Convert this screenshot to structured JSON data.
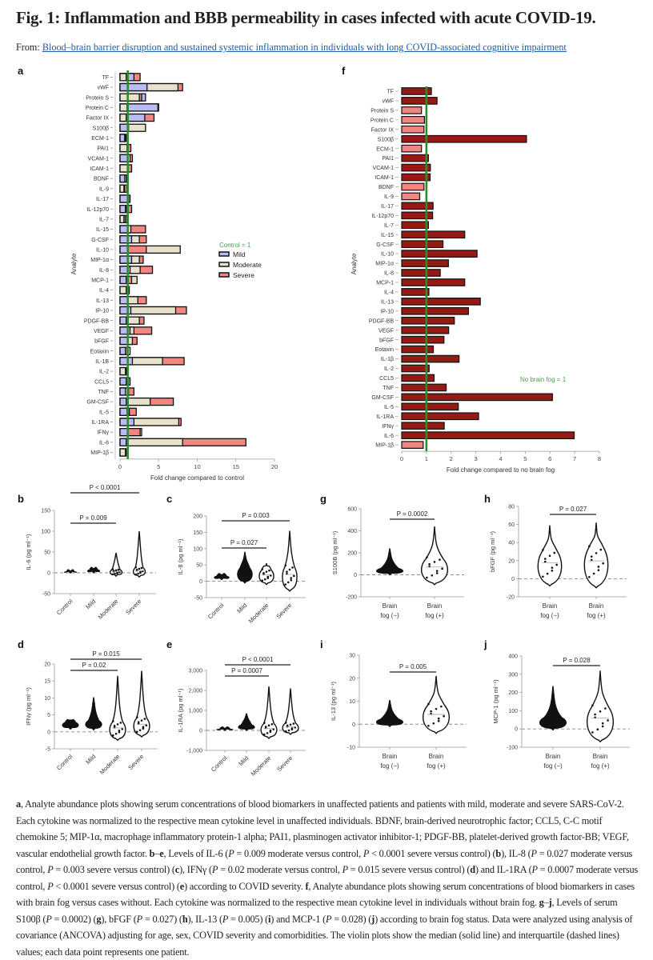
{
  "header": {
    "title": "Fig. 1: Inflammation and BBB permeability in cases infected with acute COVID-19.",
    "from_label": "From:",
    "from_link": "Blood–brain barrier disruption and sustained systemic inflammation in individuals with long COVID-associated cognitive impairment"
  },
  "colors": {
    "mild": "#b9bcf5",
    "moderate": "#e8e2cc",
    "severe": "#f08680",
    "fog_up": "#961a14",
    "fog_down": "#f08680",
    "reference_line": "#2e8b2e",
    "reference_text": "#4aa04a"
  },
  "chart_data": [
    {
      "panel": "a",
      "type": "bar",
      "orientation": "horizontal",
      "xlabel": "Fold change compared to control",
      "ylabel": "Analyte",
      "xlim": [
        0,
        20
      ],
      "xticks": [
        "0",
        "5",
        "10",
        "15",
        "20"
      ],
      "reference_line": 1,
      "reference_label": "Control = 1",
      "legend": [
        "Mild",
        "Moderate",
        "Severe"
      ],
      "legend_position": "right",
      "categories": [
        "TF",
        "vWF",
        "Protein S",
        "Protein C",
        "Factor IX",
        "S100β",
        "ECM-1",
        "PAI1",
        "VCAM-1",
        "ICAM-1",
        "BDNF",
        "IL-9",
        "IL-17",
        "IL-12p70",
        "IL-7",
        "IL-15",
        "G-CSF",
        "IL-10",
        "MIP-1α",
        "IL-8",
        "MCP-1",
        "IL-4",
        "IL-13",
        "IP-10",
        "PDGF-BB",
        "VEGF",
        "bFGF",
        "Eotaxin",
        "IL-1B",
        "IL-2",
        "CCL5",
        "TNF",
        "GM-CSF",
        "IL-5",
        "IL-1RA",
        "IFNγ",
        "IL-6",
        "MIP-1β"
      ],
      "series": [
        {
          "name": "Mild",
          "values": [
            1.8,
            3.5,
            3.3,
            4.9,
            3.2,
            1.0,
            0.6,
            1.0,
            1.0,
            1.0,
            0.6,
            0.6,
            1.0,
            0.7,
            0.9,
            1.0,
            1.5,
            1.0,
            1.5,
            1.3,
            0.8,
            1.0,
            1.0,
            1.4,
            0.8,
            1.3,
            1.0,
            0.7,
            1.6,
            0.9,
            0.8,
            0.7,
            0.8,
            0.9,
            1.8,
            1.0,
            0.8,
            0.7
          ]
        },
        {
          "name": "Moderate",
          "values": [
            0.8,
            7.5,
            2.5,
            0.9,
            0.8,
            3.3,
            0.7,
            0.9,
            1.3,
            1.0,
            0.8,
            0.5,
            1.1,
            0.8,
            0.5,
            1.4,
            2.5,
            7.8,
            2.5,
            2.6,
            2.2,
            0.8,
            2.3,
            7.2,
            2.5,
            1.8,
            1.6,
            1.3,
            5.5,
            0.7,
            1.3,
            1.1,
            3.9,
            1.2,
            7.6,
            2.8,
            8.1,
            0.7
          ]
        },
        {
          "name": "Severe",
          "values": [
            2.6,
            8.1,
            2.8,
            5.0,
            4.4,
            1.1,
            0.8,
            1.4,
            1.6,
            1.5,
            0.9,
            0.9,
            1.3,
            1.5,
            0.7,
            3.3,
            3.4,
            3.4,
            3.0,
            4.2,
            1.5,
            1.2,
            3.4,
            8.6,
            3.1,
            4.1,
            2.2,
            1.0,
            8.3,
            0.8,
            1.1,
            1.8,
            6.9,
            2.1,
            7.9,
            2.6,
            16.3,
            0.8
          ]
        }
      ]
    },
    {
      "panel": "f",
      "type": "bar",
      "orientation": "horizontal",
      "xlabel": "Fold change compared to no brain fog",
      "ylabel": "Analyte",
      "xlim": [
        0,
        8
      ],
      "xticks": [
        "0",
        "1",
        "2",
        "3",
        "4",
        "5",
        "6",
        "7",
        "8"
      ],
      "reference_line": 1,
      "reference_label": "No brain fog = 1",
      "categories": [
        "TF",
        "vWF",
        "Protein S",
        "Protein C",
        "Factor IX",
        "S100β",
        "ECM-1",
        "PAI1",
        "VCAM-1",
        "ICAM-1",
        "BDNF",
        "IL-9",
        "IL-17",
        "IL-12p70",
        "IL-7",
        "IL-15",
        "G-CSF",
        "IL-10",
        "MIP-1α",
        "IL-8",
        "MCP-1",
        "IL-4",
        "IL-13",
        "IP-10",
        "PDGF-BB",
        "VEGF",
        "bFGF",
        "Eotaxin",
        "IL-1β",
        "IL-2",
        "CCL5",
        "TNF",
        "GM-CSF",
        "IL-5",
        "IL-1RA",
        "IFNγ",
        "IL-6",
        "MIP-1β"
      ],
      "values": [
        1.2,
        1.43,
        0.8,
        0.92,
        0.9,
        5.05,
        0.8,
        1.08,
        1.16,
        1.15,
        0.9,
        0.73,
        1.27,
        1.25,
        1.08,
        2.55,
        1.67,
        3.05,
        1.89,
        1.56,
        2.55,
        1.1,
        3.18,
        2.7,
        2.13,
        1.9,
        1.71,
        1.28,
        2.32,
        1.11,
        1.31,
        1.8,
        6.1,
        2.29,
        3.11,
        1.72,
        6.98,
        0.87
      ]
    },
    {
      "panel": "b",
      "type": "violin",
      "ylabel": "IL-6 (pg ml⁻¹)",
      "categories": [
        "Control",
        "Mild",
        "Moderate",
        "Severe"
      ],
      "ylim": [
        -50,
        150
      ],
      "yticks": [
        "-50",
        "0",
        "50",
        "100",
        "150"
      ],
      "max": [
        3,
        10,
        48,
        100
      ],
      "min": [
        0,
        0,
        -8,
        -10
      ],
      "comparisons": [
        {
          "label": "P = 0.009",
          "from": "Control",
          "to": "Moderate"
        },
        {
          "label": "P < 0.0001",
          "from": "Control",
          "to": "Severe"
        }
      ]
    },
    {
      "panel": "c",
      "type": "violin",
      "ylabel": "IL-8 (pg ml⁻¹)",
      "categories": [
        "Control",
        "Mild",
        "Moderate",
        "Severe"
      ],
      "ylim": [
        -50,
        200
      ],
      "yticks": [
        "-50",
        "0",
        "50",
        "100",
        "150",
        "200"
      ],
      "max": [
        20,
        90,
        55,
        155
      ],
      "min": [
        5,
        -5,
        -10,
        -30
      ],
      "comparisons": [
        {
          "label": "P = 0.027",
          "from": "Control",
          "to": "Moderate"
        },
        {
          "label": "P = 0.003",
          "from": "Control",
          "to": "Severe"
        }
      ]
    },
    {
      "panel": "d",
      "type": "violin",
      "ylabel": "IFNγ (pg ml⁻¹)",
      "categories": [
        "Control",
        "Mild",
        "Moderate",
        "Severe"
      ],
      "ylim": [
        -5,
        20
      ],
      "yticks": [
        "-5",
        "0",
        "5",
        "10",
        "15",
        "20"
      ],
      "max": [
        3.5,
        10.2,
        16.5,
        18
      ],
      "min": [
        0.8,
        0.6,
        -2.5,
        -1.5
      ],
      "comparisons": [
        {
          "label": "P = 0.02",
          "from": "Control",
          "to": "Moderate"
        },
        {
          "label": "P = 0.015",
          "from": "Control",
          "to": "Severe"
        }
      ]
    },
    {
      "panel": "e",
      "type": "violin",
      "ylabel": "IL-1RA (pg ml⁻¹)",
      "categories": [
        "Control",
        "Mild",
        "Moderate",
        "Severe"
      ],
      "ylim": [
        -1000,
        3000
      ],
      "yticks": [
        "-1,000",
        "0",
        "1,000",
        "2,000",
        "3,000"
      ],
      "max": [
        80,
        850,
        2200,
        2100
      ],
      "min": [
        0,
        0,
        -400,
        -200
      ],
      "comparisons": [
        {
          "label": "P = 0.0007",
          "from": "Control",
          "to": "Moderate"
        },
        {
          "label": "P < 0.0001",
          "from": "Control",
          "to": "Severe"
        }
      ]
    },
    {
      "panel": "g",
      "type": "violin",
      "ylabel": "S100B (pg ml⁻¹)",
      "categories": [
        "Brain fog (−)",
        "Brain fog (+)"
      ],
      "ylim": [
        -200,
        600
      ],
      "yticks": [
        "-200",
        "0",
        "200",
        "400",
        "600"
      ],
      "max": [
        240,
        440
      ],
      "min": [
        0,
        -90
      ],
      "comparisons": [
        {
          "label": "P = 0.0002",
          "from": "Brain fog (−)",
          "to": "Brain fog (+)"
        }
      ]
    },
    {
      "panel": "h",
      "type": "violin",
      "ylabel": "bFGF (pg ml⁻¹)",
      "categories": [
        "Brain fog (−)",
        "Brain fog (+)"
      ],
      "ylim": [
        -20,
        80
      ],
      "yticks": [
        "-20",
        "0",
        "20",
        "40",
        "60",
        "80"
      ],
      "max": [
        59,
        62
      ],
      "min": [
        -8,
        -10
      ],
      "comparisons": [
        {
          "label": "P = 0.027",
          "from": "Brain fog (−)",
          "to": "Brain fog (+)"
        }
      ]
    },
    {
      "panel": "i",
      "type": "violin",
      "ylabel": "IL-13 (pg ml⁻¹)",
      "categories": [
        "Brain fog (−)",
        "Brain fog (+)"
      ],
      "ylim": [
        -10,
        30
      ],
      "yticks": [
        "-10",
        "0",
        "10",
        "20",
        "30"
      ],
      "max": [
        10.5,
        21
      ],
      "min": [
        -1,
        -4
      ],
      "comparisons": [
        {
          "label": "P = 0.005",
          "from": "Brain fog (−)",
          "to": "Brain fog (+)"
        }
      ]
    },
    {
      "panel": "j",
      "type": "violin",
      "ylabel": "MCP-1 (pg ml⁻¹)",
      "categories": [
        "Brain fog (−)",
        "Brain fog (+)"
      ],
      "ylim": [
        -100,
        400
      ],
      "yticks": [
        "-100",
        "0",
        "100",
        "200",
        "300",
        "400"
      ],
      "max": [
        235,
        320
      ],
      "min": [
        -5,
        -70
      ],
      "comparisons": [
        {
          "label": "P = 0.028",
          "from": "Brain fog (−)",
          "to": "Brain fog (+)"
        }
      ]
    }
  ],
  "violin_x_labels": {
    "severity": [
      "Control",
      "Mild",
      "Moderate",
      "Severe"
    ],
    "fog_line1": "Brain",
    "fog_minus_line2": "fog (−)",
    "fog_plus_line2": "fog (+)"
  },
  "caption": {
    "segments": [
      {
        "b": "a"
      },
      {
        "t": ", Analyte abundance plots showing serum concentrations of blood biomarkers in unaffected patients and patients with mild, moderate and severe SARS-CoV-2. Each cytokine was normalized to the respective mean cytokine level in unaffected individuals. BDNF, brain-derived neurotrophic factor; CCL5, C-C motif chemokine 5; MIP-1α, macrophage inflammatory protein-1 alpha; PAI1, plasminogen activator inhibitor-1; PDGF-BB, platelet-derived growth factor-BB; VEGF, vascular endothelial growth factor. "
      },
      {
        "b": "b"
      },
      {
        "t": "–"
      },
      {
        "b": "e"
      },
      {
        "t": ", Levels of IL-6 ("
      },
      {
        "i": "P"
      },
      {
        "t": " = 0.009 moderate versus control, "
      },
      {
        "i": "P"
      },
      {
        "t": " < 0.0001 severe versus control) ("
      },
      {
        "b": "b"
      },
      {
        "t": "), IL-8 ("
      },
      {
        "i": "P"
      },
      {
        "t": " = 0.027 moderate versus control, "
      },
      {
        "i": "P"
      },
      {
        "t": " = 0.003 severe versus control) ("
      },
      {
        "b": "c"
      },
      {
        "t": "), IFNγ ("
      },
      {
        "i": "P"
      },
      {
        "t": " = 0.02 moderate versus control, "
      },
      {
        "i": "P"
      },
      {
        "t": " = 0.015 severe versus control) ("
      },
      {
        "b": "d"
      },
      {
        "t": ") and IL-1RA ("
      },
      {
        "i": "P"
      },
      {
        "t": " = 0.0007 moderate versus control, "
      },
      {
        "i": "P"
      },
      {
        "t": " < 0.0001 severe versus control) ("
      },
      {
        "b": "e"
      },
      {
        "t": ") according to COVID severity. "
      },
      {
        "b": "f"
      },
      {
        "t": ", Analyte abundance plots showing serum concentrations of blood biomarkers in cases with brain fog versus cases without. Each cytokine was normalized to the respective mean cytokine level in individuals without brain fog. "
      },
      {
        "b": "g"
      },
      {
        "t": "–"
      },
      {
        "b": "j"
      },
      {
        "t": ", Levels of serum S100β ("
      },
      {
        "i": "P"
      },
      {
        "t": " = 0.0002) ("
      },
      {
        "b": "g"
      },
      {
        "t": "), bFGF ("
      },
      {
        "i": "P"
      },
      {
        "t": " = 0.027) ("
      },
      {
        "b": "h"
      },
      {
        "t": "), IL-13 ("
      },
      {
        "i": "P"
      },
      {
        "t": " = 0.005) ("
      },
      {
        "b": "i"
      },
      {
        "t": ") and MCP-1 ("
      },
      {
        "i": "P"
      },
      {
        "t": " = 0.028) ("
      },
      {
        "b": "j"
      },
      {
        "t": ") according to brain fog status. Data were analyzed using analysis of covariance (ANCOVA) adjusting for age, sex, COVID severity and comorbidities. The violin plots show the median (solid line) and interquartile (dashed lines) values; each data point represents one patient."
      }
    ]
  }
}
